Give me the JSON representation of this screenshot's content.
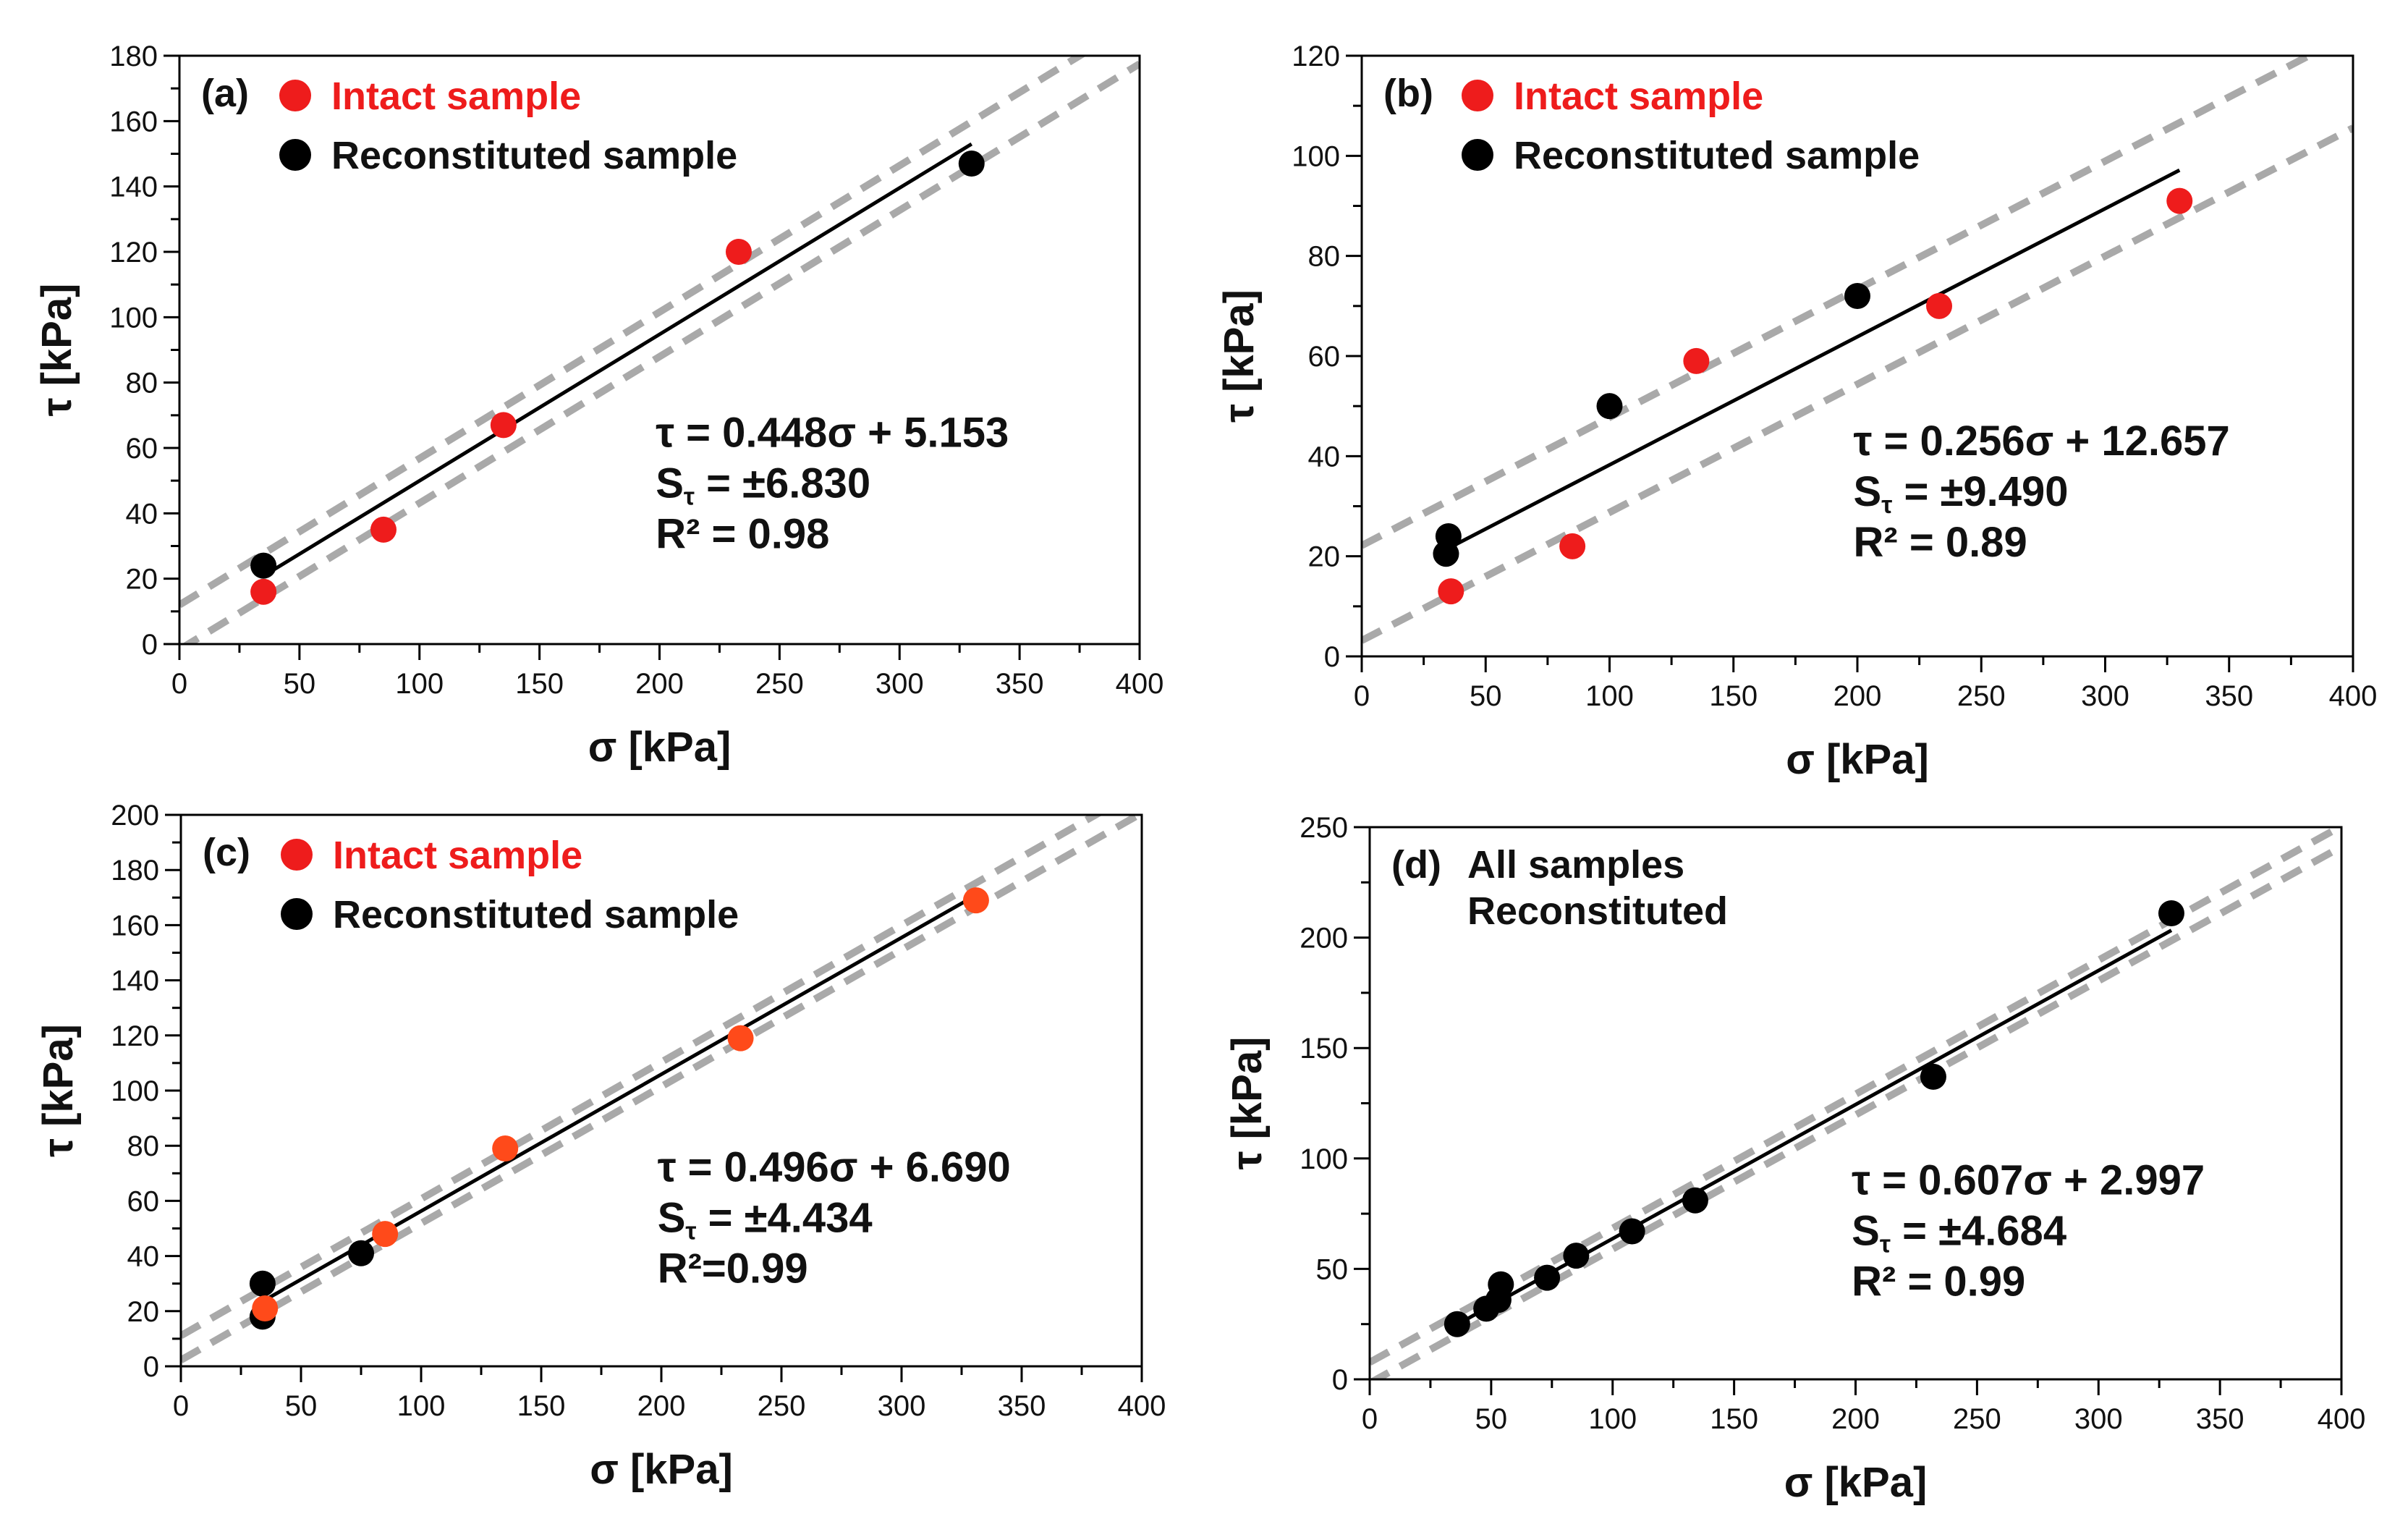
{
  "chart_data": [
    {
      "type": "scatter",
      "panel": "(a)",
      "xlabel": "σ [kPa]",
      "ylabel": "τ [kPa]",
      "xlim": [
        0,
        400
      ],
      "ylim": [
        0,
        180
      ],
      "xticks": [
        0,
        50,
        100,
        150,
        200,
        250,
        300,
        350,
        400
      ],
      "yticks": [
        0,
        20,
        40,
        60,
        80,
        100,
        120,
        140,
        160,
        180
      ],
      "grid": false,
      "legend": [
        {
          "label": "Intact sample",
          "color": "#ee1c1c"
        },
        {
          "label": "Reconstituted sample",
          "color": "#000000"
        }
      ],
      "series": [
        {
          "name": "Intact sample",
          "color": "#ee1c1c",
          "points": [
            [
              35,
              16
            ],
            [
              85,
              35
            ],
            [
              135,
              67
            ],
            [
              233,
              120
            ]
          ]
        },
        {
          "name": "Reconstituted sample",
          "color": "#000000",
          "points": [
            [
              35,
              24
            ],
            [
              330,
              147
            ]
          ]
        }
      ],
      "fit": {
        "slope": 0.448,
        "intercept": 5.153,
        "x_range": [
          35,
          330
        ],
        "band": 6.83
      },
      "annotation": [
        "τ = 0.448σ + 5.153",
        "Sτ = ±6.830",
        "R² = 0.98"
      ]
    },
    {
      "type": "scatter",
      "panel": "(b)",
      "xlabel": "σ [kPa]",
      "ylabel": "τ [kPa]",
      "xlim": [
        0,
        400
      ],
      "ylim": [
        0,
        120
      ],
      "xticks": [
        0,
        50,
        100,
        150,
        200,
        250,
        300,
        350,
        400
      ],
      "yticks": [
        0,
        20,
        40,
        60,
        80,
        100,
        120
      ],
      "grid": false,
      "legend": [
        {
          "label": "Intact sample",
          "color": "#ee1c1c"
        },
        {
          "label": "Reconstituted sample",
          "color": "#000000"
        }
      ],
      "series": [
        {
          "name": "Intact sample",
          "color": "#ee1c1c",
          "points": [
            [
              36,
              13
            ],
            [
              85,
              22
            ],
            [
              135,
              59
            ],
            [
              233,
              70
            ],
            [
              330,
              91
            ]
          ]
        },
        {
          "name": "Reconstituted sample",
          "color": "#000000",
          "points": [
            [
              35,
              24
            ],
            [
              34,
              20.5
            ],
            [
              100,
              50
            ],
            [
              200,
              72
            ]
          ]
        }
      ],
      "fit": {
        "slope": 0.256,
        "intercept": 12.657,
        "x_range": [
          35,
          330
        ],
        "band": 9.49
      },
      "annotation": [
        "τ = 0.256σ + 12.657",
        "Sτ = ±9.490",
        "R² = 0.89"
      ]
    },
    {
      "type": "scatter",
      "panel": "(c)",
      "xlabel": "σ [kPa]",
      "ylabel": "τ [kPa]",
      "xlim": [
        0,
        400
      ],
      "ylim": [
        0,
        200
      ],
      "xticks": [
        0,
        50,
        100,
        150,
        200,
        250,
        300,
        350,
        400
      ],
      "yticks": [
        0,
        20,
        40,
        60,
        80,
        100,
        120,
        140,
        160,
        180,
        200
      ],
      "grid": false,
      "legend": [
        {
          "label": "Intact sample",
          "color": "#ee1c1c"
        },
        {
          "label": "Reconstituted sample",
          "color": "#000000"
        }
      ],
      "series": [
        {
          "name": "Reconstituted sample",
          "color": "#000000",
          "points": [
            [
              34,
              30
            ],
            [
              34,
              18
            ],
            [
              75,
              41
            ]
          ]
        },
        {
          "name": "Intact sample",
          "color": "#ff4a1a",
          "points": [
            [
              35,
              21
            ],
            [
              85,
              48
            ],
            [
              135,
              79
            ],
            [
              233,
              119
            ],
            [
              331,
              169
            ]
          ]
        }
      ],
      "fit": {
        "slope": 0.496,
        "intercept": 6.69,
        "x_range": [
          34,
          331
        ],
        "band": 4.434
      },
      "annotation": [
        "τ = 0.496σ + 6.690",
        "Sτ = ±4.434",
        "R²=0.99"
      ]
    },
    {
      "type": "scatter",
      "panel": "(d)",
      "xlabel": "σ [kPa]",
      "ylabel": "τ [kPa]",
      "xlim": [
        0,
        400
      ],
      "ylim": [
        0,
        250
      ],
      "xticks": [
        0,
        50,
        100,
        150,
        200,
        250,
        300,
        350,
        400
      ],
      "yticks": [
        0,
        50,
        100,
        150,
        200,
        250
      ],
      "grid": false,
      "legend_text": [
        "All samples",
        "Reconstituted"
      ],
      "series": [
        {
          "name": "All samples Reconstituted",
          "color": "#000000",
          "points": [
            [
              36,
              25
            ],
            [
              48,
              32
            ],
            [
              53,
              36
            ],
            [
              54,
              43
            ],
            [
              73,
              46
            ],
            [
              85,
              56
            ],
            [
              108,
              67
            ],
            [
              134,
              81
            ],
            [
              232,
              137
            ],
            [
              330,
              211
            ]
          ]
        }
      ],
      "fit": {
        "slope": 0.607,
        "intercept": 2.997,
        "x_range": [
          36,
          330
        ],
        "band": 4.684
      },
      "annotation": [
        "τ = 0.607σ + 2.997",
        "Sτ = ±4.684",
        "R² = 0.99"
      ]
    }
  ]
}
